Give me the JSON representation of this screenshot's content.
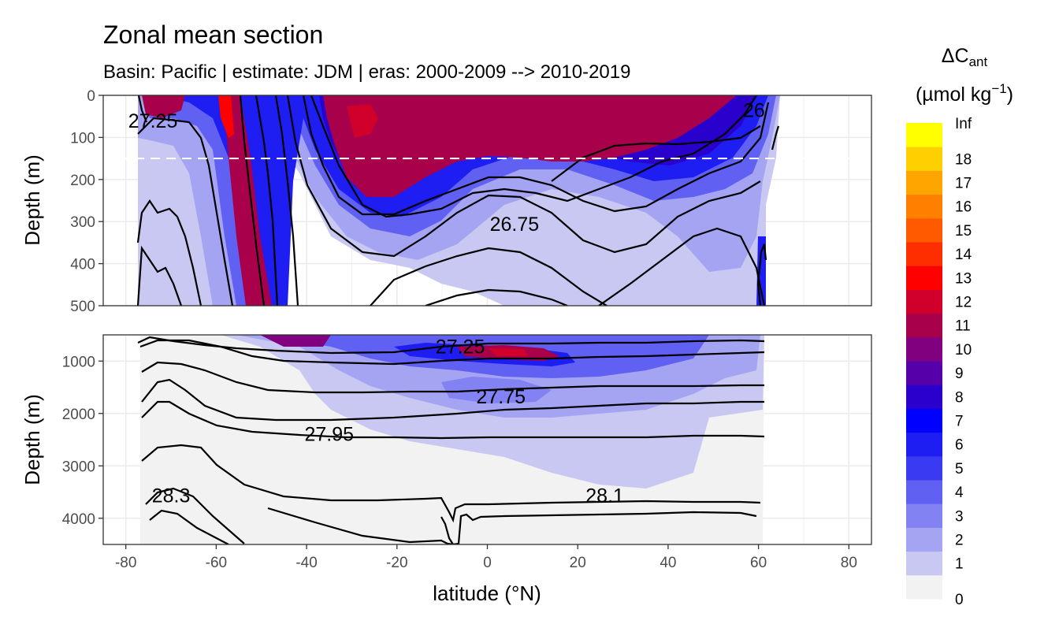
{
  "chart_data": {
    "type": "heatmap",
    "title": "Zonal mean section",
    "subtitle": "Basin: Pacific | estimate: JDM  | eras: 2000-2009 --> 2010-2019",
    "xlabel": "latitude (°N)",
    "ylabel": "Depth (m)",
    "xlim": [
      -85,
      85
    ],
    "x_ticks": [
      -80,
      -60,
      -40,
      -20,
      0,
      20,
      40,
      60,
      80
    ],
    "panels": [
      {
        "name": "upper",
        "ylim": [
          500,
          0
        ],
        "y_ticks": [
          0,
          100,
          200,
          300,
          400,
          500
        ],
        "reference_depth": 150,
        "contour_labels": [
          {
            "text": "27.25",
            "lat": -74,
            "depth": 60
          },
          {
            "text": "26.75",
            "lat": 6,
            "depth": 305
          },
          {
            "text": "26",
            "lat": 59,
            "depth": 35
          }
        ]
      },
      {
        "name": "lower",
        "ylim": [
          4500,
          500
        ],
        "y_ticks": [
          1000,
          2000,
          3000,
          4000
        ],
        "contour_labels": [
          {
            "text": "27.25",
            "lat": -6,
            "depth": 720
          },
          {
            "text": "27.75",
            "lat": 3,
            "depth": 1670
          },
          {
            "text": "27.95",
            "lat": -35,
            "depth": 2390
          },
          {
            "text": "28.3",
            "lat": -70,
            "depth": 3560
          },
          {
            "text": "28.1",
            "lat": 26,
            "depth": 3560
          }
        ]
      }
    ],
    "legend": {
      "title": "ΔC",
      "title_sub": "ant",
      "unit": "(µmol kg",
      "unit_sup": "−1",
      "unit_end": ")",
      "position": "right",
      "breaks": [
        "0",
        "1",
        "2",
        "3",
        "4",
        "5",
        "6",
        "7",
        "8",
        "9",
        "10",
        "11",
        "12",
        "13",
        "14",
        "15",
        "16",
        "17",
        "18",
        "Inf"
      ],
      "colors": [
        "#f2f2f2",
        "#c8c8f2",
        "#a4a4f2",
        "#8282f2",
        "#6060f2",
        "#3a3af2",
        "#1e1ef2",
        "#0000ff",
        "#2a00cc",
        "#5500a8",
        "#800080",
        "#a8004a",
        "#d0002a",
        "#ff0000",
        "#ff2e00",
        "#ff5a00",
        "#ff8000",
        "#ffa500",
        "#ffd000",
        "#ffff00"
      ]
    }
  }
}
